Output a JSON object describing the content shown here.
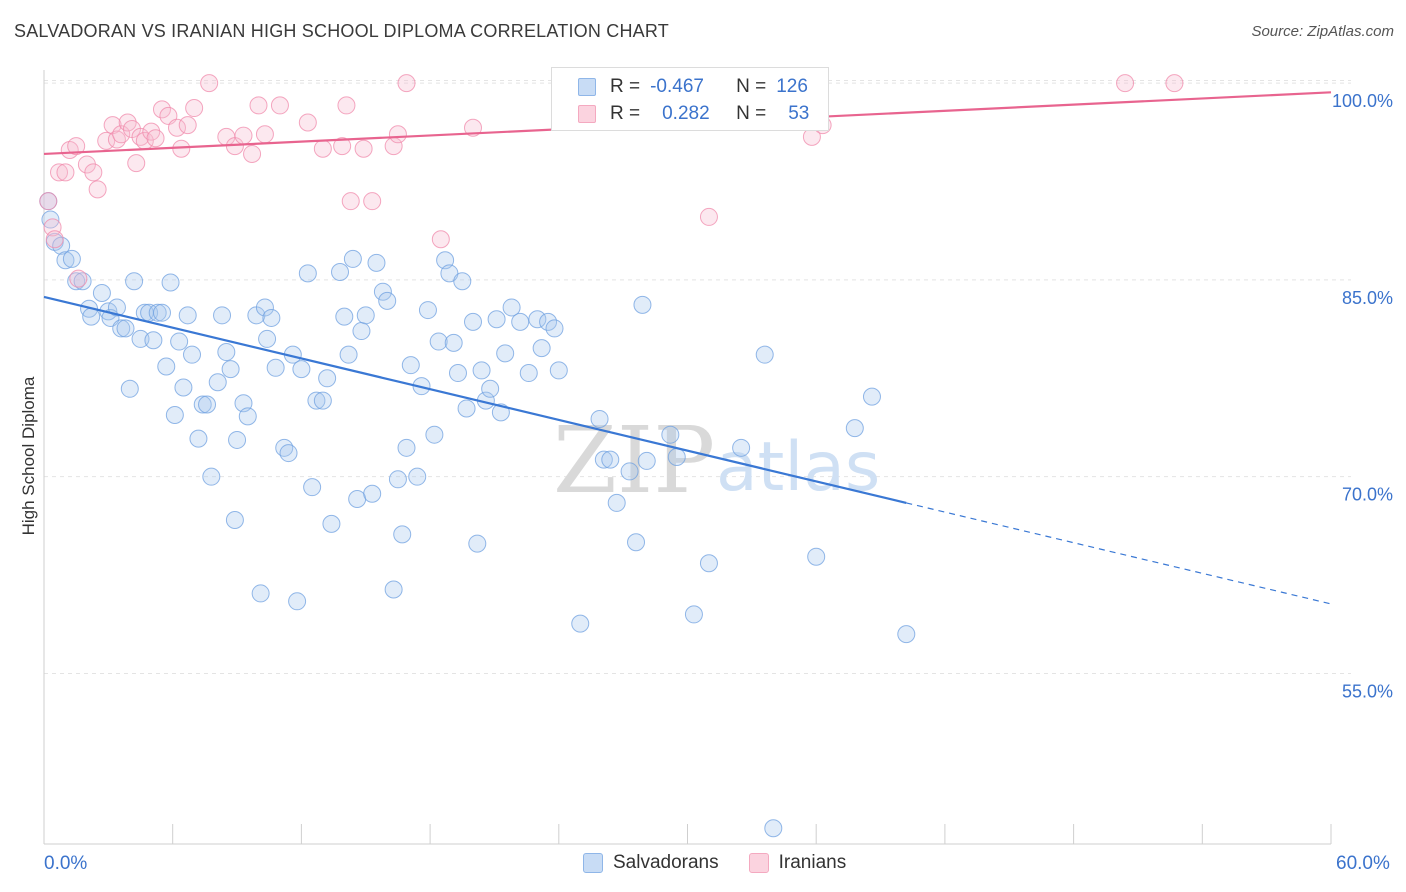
{
  "header": {
    "title": "SALVADORAN VS IRANIAN HIGH SCHOOL DIPLOMA CORRELATION CHART",
    "source": "Source: ZipAtlas.com"
  },
  "watermark": {
    "zip": "ZIP",
    "atlas": "atlas"
  },
  "legend_top": {
    "rows": [
      {
        "r_label": "R =",
        "r_value": "-0.467",
        "n_label": "N =",
        "n_value": "126",
        "color": "#8fb6e8"
      },
      {
        "r_label": "R =",
        "r_value": "0.282",
        "n_label": "N =",
        "n_value": "53",
        "color": "#f4a9c0"
      }
    ]
  },
  "legend_bottom": {
    "items": [
      {
        "label": "Salvadorans",
        "color": "#8fb6e8"
      },
      {
        "label": "Iranians",
        "color": "#f4a9c0"
      }
    ]
  },
  "x_axis": {
    "min_label": "0.0%",
    "max_label": "60.0%"
  },
  "chart_data": {
    "type": "scatter",
    "title": "SALVADORAN VS IRANIAN HIGH SCHOOL DIPLOMA CORRELATION CHART",
    "xlabel": "",
    "ylabel": "High School Diploma",
    "xlim": [
      0,
      60
    ],
    "ylim": [
      42,
      101
    ],
    "y_ticks": [
      {
        "value": 55,
        "label": "55.0%"
      },
      {
        "value": 70,
        "label": "70.0%"
      },
      {
        "value": 85,
        "label": "85.0%"
      },
      {
        "value": 100,
        "label": "100.0%"
      }
    ],
    "grid": true,
    "legend_position": "bottom",
    "series": [
      {
        "name": "Salvadorans",
        "color": "#6fa0e0",
        "stats": {
          "R": -0.467,
          "N": 126
        },
        "trend": {
          "x0": 0,
          "y0": 83.7,
          "x1": 40.2,
          "y1": 68.0,
          "dashed_to_x": 60,
          "dashed_to_y": 60.3
        },
        "points": [
          [
            0.2,
            91.0
          ],
          [
            0.3,
            89.6
          ],
          [
            0.5,
            87.9
          ],
          [
            0.8,
            87.6
          ],
          [
            1.0,
            86.5
          ],
          [
            1.3,
            86.6
          ],
          [
            1.5,
            84.9
          ],
          [
            1.8,
            84.9
          ],
          [
            2.1,
            82.8
          ],
          [
            2.2,
            82.2
          ],
          [
            2.7,
            84.0
          ],
          [
            3.0,
            82.6
          ],
          [
            3.1,
            82.1
          ],
          [
            3.4,
            82.9
          ],
          [
            3.6,
            81.3
          ],
          [
            3.8,
            81.3
          ],
          [
            4.0,
            76.7
          ],
          [
            4.2,
            84.9
          ],
          [
            4.5,
            80.5
          ],
          [
            4.7,
            82.5
          ],
          [
            4.9,
            82.5
          ],
          [
            5.1,
            80.4
          ],
          [
            5.3,
            82.5
          ],
          [
            5.5,
            82.5
          ],
          [
            5.7,
            78.4
          ],
          [
            5.9,
            84.8
          ],
          [
            6.1,
            74.7
          ],
          [
            6.3,
            80.3
          ],
          [
            6.5,
            76.8
          ],
          [
            6.7,
            82.3
          ],
          [
            6.9,
            79.3
          ],
          [
            7.2,
            72.9
          ],
          [
            7.4,
            75.5
          ],
          [
            7.6,
            75.5
          ],
          [
            7.8,
            70.0
          ],
          [
            8.1,
            77.2
          ],
          [
            8.3,
            82.3
          ],
          [
            8.5,
            79.5
          ],
          [
            8.7,
            78.2
          ],
          [
            8.9,
            66.7
          ],
          [
            9.0,
            72.8
          ],
          [
            9.3,
            75.6
          ],
          [
            9.5,
            74.6
          ],
          [
            9.9,
            82.3
          ],
          [
            10.1,
            61.1
          ],
          [
            10.3,
            82.9
          ],
          [
            10.4,
            80.5
          ],
          [
            10.6,
            82.1
          ],
          [
            10.8,
            78.3
          ],
          [
            11.2,
            72.2
          ],
          [
            11.4,
            71.8
          ],
          [
            11.6,
            79.3
          ],
          [
            11.8,
            60.5
          ],
          [
            12.0,
            78.2
          ],
          [
            12.3,
            85.5
          ],
          [
            12.5,
            69.2
          ],
          [
            12.7,
            75.8
          ],
          [
            13.0,
            75.8
          ],
          [
            13.2,
            77.5
          ],
          [
            13.4,
            66.4
          ],
          [
            13.8,
            85.6
          ],
          [
            14.0,
            82.2
          ],
          [
            14.2,
            79.3
          ],
          [
            14.4,
            86.6
          ],
          [
            14.6,
            68.3
          ],
          [
            14.8,
            81.1
          ],
          [
            15.0,
            82.3
          ],
          [
            15.3,
            68.7
          ],
          [
            15.5,
            86.3
          ],
          [
            15.8,
            84.1
          ],
          [
            16.0,
            83.4
          ],
          [
            16.3,
            61.4
          ],
          [
            16.5,
            69.8
          ],
          [
            16.7,
            65.6
          ],
          [
            16.9,
            72.2
          ],
          [
            17.1,
            78.5
          ],
          [
            17.4,
            70.0
          ],
          [
            17.6,
            76.9
          ],
          [
            17.9,
            82.7
          ],
          [
            18.2,
            73.2
          ],
          [
            18.4,
            80.3
          ],
          [
            18.7,
            86.5
          ],
          [
            18.9,
            85.5
          ],
          [
            19.1,
            80.2
          ],
          [
            19.3,
            77.9
          ],
          [
            19.5,
            84.9
          ],
          [
            19.7,
            75.2
          ],
          [
            20.0,
            81.8
          ],
          [
            20.2,
            64.9
          ],
          [
            20.4,
            78.1
          ],
          [
            20.6,
            75.8
          ],
          [
            20.8,
            76.7
          ],
          [
            21.1,
            82.0
          ],
          [
            21.3,
            74.9
          ],
          [
            21.5,
            79.4
          ],
          [
            21.8,
            82.9
          ],
          [
            22.2,
            81.8
          ],
          [
            22.6,
            77.9
          ],
          [
            23.0,
            82.0
          ],
          [
            23.2,
            79.8
          ],
          [
            23.5,
            81.8
          ],
          [
            23.8,
            81.3
          ],
          [
            24.0,
            78.1
          ],
          [
            24.3,
            100.0
          ],
          [
            25.0,
            58.8
          ],
          [
            25.9,
            74.4
          ],
          [
            26.1,
            71.3
          ],
          [
            26.4,
            71.3
          ],
          [
            26.7,
            68.0
          ],
          [
            27.3,
            70.4
          ],
          [
            27.6,
            65.0
          ],
          [
            27.9,
            83.1
          ],
          [
            28.1,
            71.2
          ],
          [
            29.2,
            73.2
          ],
          [
            29.5,
            71.5
          ],
          [
            30.3,
            59.5
          ],
          [
            31.0,
            63.4
          ],
          [
            32.5,
            72.2
          ],
          [
            33.6,
            79.3
          ],
          [
            36.0,
            63.9
          ],
          [
            37.8,
            73.7
          ],
          [
            38.6,
            76.1
          ],
          [
            40.2,
            58.0
          ],
          [
            34.0,
            43.2
          ]
        ]
      },
      {
        "name": "Iranians",
        "color": "#f08aab",
        "stats": {
          "R": 0.282,
          "N": 53
        },
        "trend": {
          "x0": 0,
          "y0": 94.6,
          "x1": 60,
          "y1": 99.3
        },
        "points": [
          [
            0.2,
            91.0
          ],
          [
            0.4,
            89.0
          ],
          [
            0.5,
            88.1
          ],
          [
            0.7,
            93.2
          ],
          [
            1.0,
            93.2
          ],
          [
            1.2,
            94.9
          ],
          [
            1.5,
            95.2
          ],
          [
            1.6,
            85.1
          ],
          [
            2.0,
            93.8
          ],
          [
            2.3,
            93.2
          ],
          [
            2.5,
            91.9
          ],
          [
            2.9,
            95.6
          ],
          [
            3.2,
            96.8
          ],
          [
            3.4,
            95.7
          ],
          [
            3.6,
            96.1
          ],
          [
            3.9,
            97.0
          ],
          [
            4.1,
            96.5
          ],
          [
            4.3,
            93.9
          ],
          [
            4.5,
            95.9
          ],
          [
            4.7,
            95.6
          ],
          [
            5.0,
            96.3
          ],
          [
            5.2,
            95.8
          ],
          [
            5.5,
            98.0
          ],
          [
            5.8,
            97.5
          ],
          [
            6.2,
            96.6
          ],
          [
            6.4,
            95.0
          ],
          [
            6.7,
            96.8
          ],
          [
            7.0,
            98.1
          ],
          [
            7.7,
            100.0
          ],
          [
            8.5,
            95.9
          ],
          [
            8.9,
            95.2
          ],
          [
            9.3,
            96.0
          ],
          [
            9.7,
            94.6
          ],
          [
            10.0,
            98.3
          ],
          [
            10.3,
            96.1
          ],
          [
            11.0,
            98.3
          ],
          [
            12.3,
            97.0
          ],
          [
            13.0,
            95.0
          ],
          [
            13.9,
            95.2
          ],
          [
            14.1,
            98.3
          ],
          [
            14.3,
            91.0
          ],
          [
            14.9,
            95.0
          ],
          [
            15.3,
            91.0
          ],
          [
            16.3,
            95.2
          ],
          [
            16.5,
            96.1
          ],
          [
            16.9,
            100.0
          ],
          [
            18.5,
            88.1
          ],
          [
            20.0,
            96.6
          ],
          [
            31.0,
            89.8
          ],
          [
            35.8,
            95.9
          ],
          [
            36.3,
            96.8
          ],
          [
            50.4,
            100.0
          ],
          [
            52.7,
            100.0
          ]
        ]
      }
    ]
  }
}
